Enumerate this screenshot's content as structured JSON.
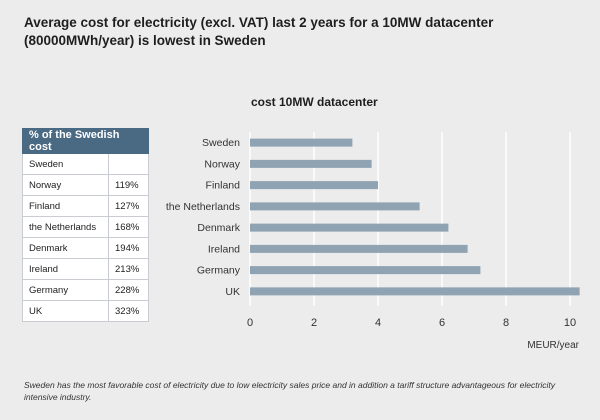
{
  "title": "Average cost for electricity (excl. VAT) last 2 years for a 10MW datacenter (80000MWh/year) is lowest in Sweden",
  "table": {
    "header": "% of the Swedish cost",
    "rows": [
      {
        "country": "Sweden",
        "value": ""
      },
      {
        "country": "Norway",
        "value": "119%"
      },
      {
        "country": "Finland",
        "value": "127%"
      },
      {
        "country": "the Netherlands",
        "value": "168%"
      },
      {
        "country": "Denmark",
        "value": "194%"
      },
      {
        "country": "Ireland",
        "value": "213%"
      },
      {
        "country": "Germany",
        "value": "228%"
      },
      {
        "country": "UK",
        "value": "323%"
      }
    ]
  },
  "footnote": "Sweden has the most favorable cost of electricity due to low electricity sales price and in addition a tariff structure advantageous for electricity intensive industry.",
  "colors": {
    "bar": "#8fa3b3",
    "grid": "#ffffff",
    "header": "#4a6a84"
  },
  "chart_data": {
    "type": "bar",
    "orientation": "horizontal",
    "title": "cost 10MW datacenter",
    "xlabel": "MEUR/year",
    "ylabel": "",
    "categories": [
      "Sweden",
      "Norway",
      "Finland",
      "the Netherlands",
      "Denmark",
      "Ireland",
      "Germany",
      "UK"
    ],
    "values": [
      3.2,
      3.8,
      4.0,
      5.3,
      6.2,
      6.8,
      7.2,
      10.3
    ],
    "xlim": [
      0,
      10.3
    ],
    "xticks": [
      "0",
      "2",
      "4",
      "6",
      "8",
      "10"
    ],
    "grid": true
  }
}
